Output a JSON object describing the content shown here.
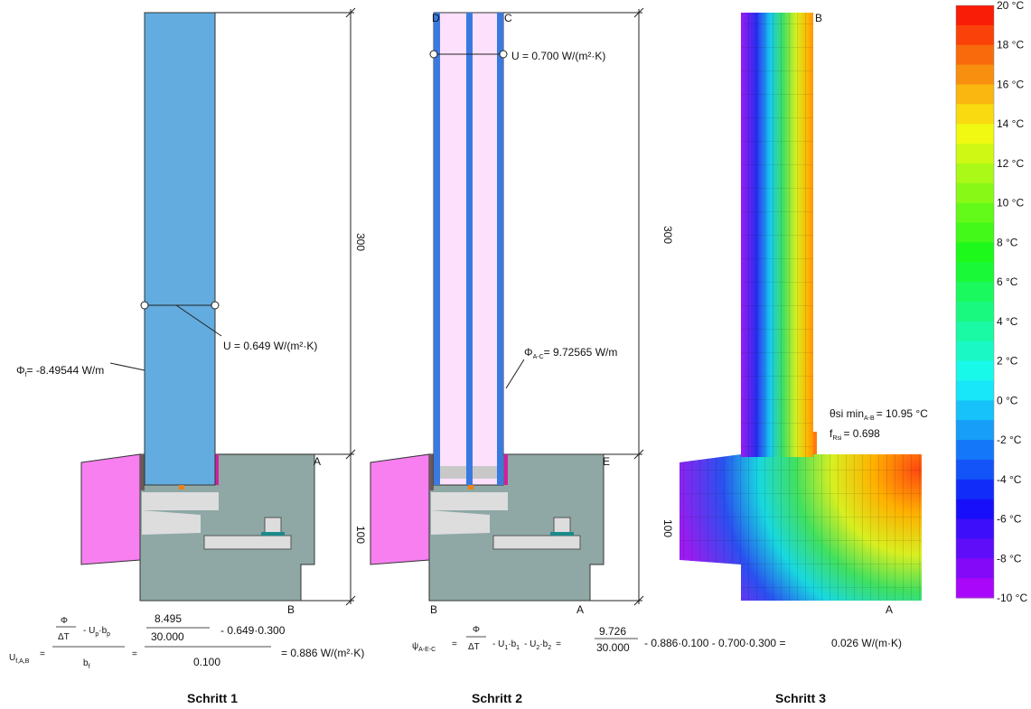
{
  "step1": {
    "caption": "Schritt 1",
    "phi": {
      "symbol": "Φ",
      "sub": "f",
      "text": "= -8.49544 W/m"
    },
    "u": "U = 0.649 W/(m²·K)",
    "point_a": "A",
    "point_b": "B",
    "dim_upper": "300",
    "dim_lower": "100",
    "formula": {
      "lhs": "U",
      "lhs_sub": "f,A,B",
      "eq1": "=",
      "phi": "Φ",
      "delta_t": "ΔT",
      "term": "- U",
      "term_sub1": "p",
      "term_mid": "·b",
      "term_sub2": "p",
      "denom": "b",
      "denom_sub": "f",
      "eq2": "=",
      "num": "8.495",
      "num_den": "30.000",
      "minus": "- 0.649·0.300",
      "denom_value": "0.100",
      "result": "= 0.886 W/(m²·K)"
    }
  },
  "step2": {
    "caption": "Schritt 2",
    "point_d": "D",
    "point_c": "C",
    "point_e": "E",
    "point_b": "B",
    "point_a": "A",
    "u": "U = 0.700 W/(m²·K)",
    "phi": {
      "symbol": "Φ",
      "sub": "A-C",
      "text": "= 9.72565 W/m"
    },
    "dim_upper": "300",
    "dim_lower": "100",
    "formula": {
      "lhs": "ψ",
      "lhs_sub": "A-E-C",
      "eq1": "=",
      "phi": "Φ",
      "delta_t": "ΔT",
      "t1": "- U",
      "t1_sub1": "1",
      "t1_mid": "·b",
      "t1_sub2": "1",
      "t2": "- U",
      "t2_sub1": "2",
      "t2_mid": "·b",
      "t2_sub2": "2",
      "eq2": "=",
      "num": "9.726",
      "num_den": "30.000",
      "rest": "- 0.886·0.100 - 0.700·0.300 =",
      "result": "0.026 W/(m·K)"
    }
  },
  "step3": {
    "caption": "Schritt 3",
    "point_b": "B",
    "point_a": "A",
    "theta": {
      "text": "θsi min",
      "sub": "A-B",
      "value": "= 10.95 °C"
    },
    "f": {
      "text": "f",
      "sub": "Rsi",
      "value": "= 0.698"
    }
  },
  "legend": {
    "labels": [
      "20 °C",
      "18 °C",
      "16 °C",
      "14 °C",
      "12 °C",
      "10 °C",
      "8 °C",
      "6 °C",
      "4 °C",
      "2 °C",
      "0 °C",
      "-2 °C",
      "-4 °C",
      "-6 °C",
      "-8 °C",
      "-10 °C"
    ]
  }
}
